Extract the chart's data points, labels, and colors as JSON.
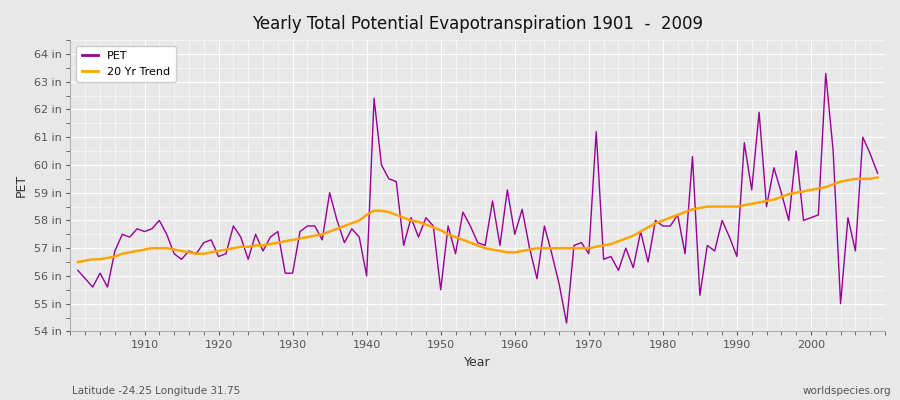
{
  "title": "Yearly Total Potential Evapotranspiration 1901  -  2009",
  "xlabel": "Year",
  "ylabel": "PET",
  "subtitle_left": "Latitude -24.25 Longitude 31.75",
  "subtitle_right": "worldspecies.org",
  "pet_color": "#990099",
  "trend_color": "#FFA500",
  "bg_color": "#e8e8e8",
  "plot_bg_color": "#e8e8e8",
  "grid_color": "#ffffff",
  "ylim": [
    54,
    64.5
  ],
  "xlim": [
    1900,
    2010
  ],
  "yticks": [
    54,
    55,
    56,
    57,
    58,
    59,
    60,
    61,
    62,
    63,
    64
  ],
  "years": [
    1901,
    1902,
    1903,
    1904,
    1905,
    1906,
    1907,
    1908,
    1909,
    1910,
    1911,
    1912,
    1913,
    1914,
    1915,
    1916,
    1917,
    1918,
    1919,
    1920,
    1921,
    1922,
    1923,
    1924,
    1925,
    1926,
    1927,
    1928,
    1929,
    1930,
    1931,
    1932,
    1933,
    1934,
    1935,
    1936,
    1937,
    1938,
    1939,
    1940,
    1941,
    1942,
    1943,
    1944,
    1945,
    1946,
    1947,
    1948,
    1949,
    1950,
    1951,
    1952,
    1953,
    1954,
    1955,
    1956,
    1957,
    1958,
    1959,
    1960,
    1961,
    1962,
    1963,
    1964,
    1965,
    1966,
    1967,
    1968,
    1969,
    1970,
    1971,
    1972,
    1973,
    1974,
    1975,
    1976,
    1977,
    1978,
    1979,
    1980,
    1981,
    1982,
    1983,
    1984,
    1985,
    1986,
    1987,
    1988,
    1989,
    1990,
    1991,
    1992,
    1993,
    1994,
    1995,
    1996,
    1997,
    1998,
    1999,
    2000,
    2001,
    2002,
    2003,
    2004,
    2005,
    2006,
    2007,
    2008,
    2009
  ],
  "pet": [
    56.2,
    55.9,
    55.6,
    56.1,
    55.6,
    56.9,
    57.5,
    57.4,
    57.7,
    57.6,
    57.7,
    58.0,
    57.5,
    56.8,
    56.6,
    56.9,
    56.8,
    57.2,
    57.3,
    56.7,
    56.8,
    57.8,
    57.4,
    56.6,
    57.5,
    56.9,
    57.4,
    57.6,
    56.1,
    56.1,
    57.6,
    57.8,
    57.8,
    57.3,
    59.0,
    58.0,
    57.2,
    57.7,
    57.4,
    56.0,
    62.4,
    60.0,
    59.5,
    59.4,
    57.1,
    58.1,
    57.4,
    58.1,
    57.8,
    55.5,
    57.8,
    56.8,
    58.3,
    57.8,
    57.2,
    57.1,
    58.7,
    57.1,
    59.1,
    57.5,
    58.4,
    57.0,
    55.9,
    57.8,
    56.8,
    55.7,
    54.3,
    57.1,
    57.2,
    56.8,
    61.2,
    56.6,
    56.7,
    56.2,
    57.0,
    56.3,
    57.6,
    56.5,
    58.0,
    57.8,
    57.8,
    58.2,
    56.8,
    60.3,
    55.3,
    57.1,
    56.9,
    58.0,
    57.4,
    56.7,
    60.8,
    59.1,
    61.9,
    58.5,
    59.9,
    59.0,
    58.0,
    60.5,
    58.0,
    58.1,
    58.2,
    63.3,
    60.5,
    55.0,
    58.1,
    56.9,
    61.0,
    60.4,
    59.7
  ],
  "trend": [
    56.5,
    56.55,
    56.6,
    56.6,
    56.65,
    56.7,
    56.8,
    56.85,
    56.9,
    56.95,
    57.0,
    57.0,
    57.0,
    56.95,
    56.9,
    56.85,
    56.8,
    56.8,
    56.85,
    56.9,
    56.95,
    57.0,
    57.05,
    57.05,
    57.1,
    57.1,
    57.15,
    57.2,
    57.25,
    57.3,
    57.35,
    57.4,
    57.45,
    57.5,
    57.6,
    57.7,
    57.8,
    57.9,
    58.0,
    58.2,
    58.35,
    58.35,
    58.3,
    58.2,
    58.1,
    58.0,
    57.95,
    57.85,
    57.75,
    57.65,
    57.5,
    57.4,
    57.3,
    57.2,
    57.1,
    57.0,
    56.95,
    56.9,
    56.85,
    56.85,
    56.9,
    56.95,
    57.0,
    57.0,
    57.0,
    57.0,
    57.0,
    57.0,
    57.0,
    57.0,
    57.05,
    57.1,
    57.15,
    57.25,
    57.35,
    57.45,
    57.6,
    57.75,
    57.9,
    58.0,
    58.1,
    58.2,
    58.3,
    58.4,
    58.45,
    58.5,
    58.5,
    58.5,
    58.5,
    58.5,
    58.55,
    58.6,
    58.65,
    58.7,
    58.75,
    58.85,
    58.95,
    59.0,
    59.05,
    59.1,
    59.15,
    59.2,
    59.3,
    59.4,
    59.45,
    59.5,
    59.5,
    59.5,
    59.55
  ]
}
